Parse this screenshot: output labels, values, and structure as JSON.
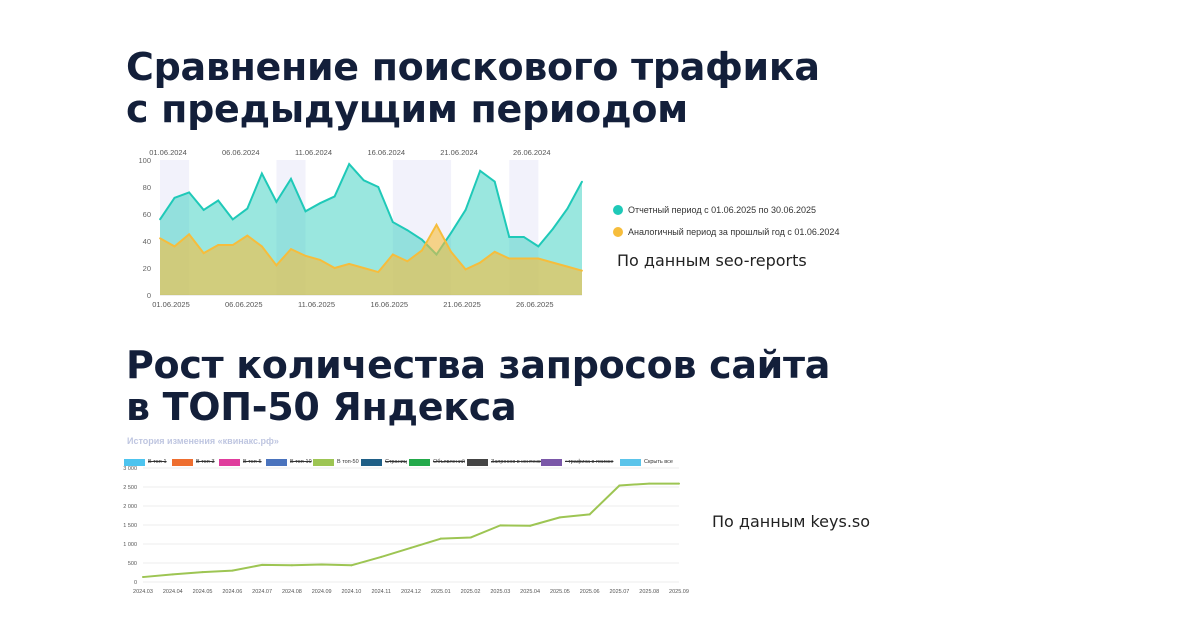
{
  "titles": {
    "traffic": [
      "Сравнение поискового трафика",
      "с предыдущим периодом"
    ],
    "queries": [
      "Рост количества запросов сайта",
      "в ТОП-50 Яндекса"
    ]
  },
  "sources": {
    "traffic": "По данным seo-reports",
    "queries": "По данным keys.so"
  },
  "chart_data": [
    {
      "type": "area",
      "x_top_labels": [
        "01.06.2024",
        "06.06.2024",
        "11.06.2024",
        "16.06.2024",
        "21.06.2024",
        "26.06.2024"
      ],
      "x_bottom_labels": [
        "01.06.2025",
        "06.06.2025",
        "11.06.2025",
        "16.06.2025",
        "21.06.2025",
        "26.06.2025"
      ],
      "y_ticks": [
        0,
        20,
        40,
        60,
        80,
        100
      ],
      "ylim": [
        0,
        100
      ],
      "grid": false,
      "legend_position": "right",
      "series": [
        {
          "name": "Отчетный период с 01.06.2025 по 30.06.2025",
          "color": "#1fc9b8",
          "values": [
            56,
            72,
            76,
            63,
            70,
            56,
            64,
            90,
            69,
            86,
            62,
            68,
            73,
            97,
            85,
            80,
            54,
            48,
            41,
            30,
            46,
            63,
            92,
            84,
            43,
            43,
            36,
            49,
            64,
            84
          ]
        },
        {
          "name": "Аналогичный период за прошлый год с 01.06.2024",
          "color": "#f6bd3c",
          "values": [
            42,
            36,
            45,
            31,
            37,
            37,
            44,
            36,
            22,
            34,
            29,
            26,
            20,
            23,
            20,
            17,
            30,
            25,
            33,
            52,
            32,
            19,
            24,
            32,
            27,
            27,
            27,
            24,
            21,
            18
          ]
        }
      ]
    },
    {
      "type": "line",
      "heading": "История изменения «квинакс.рф»",
      "categories": [
        "2024.03",
        "2024.04",
        "2024.05",
        "2024.06",
        "2024.07",
        "2024.08",
        "2024.09",
        "2024.10",
        "2024.11",
        "2024.12",
        "2025.01",
        "2025.02",
        "2025.03",
        "2025.04",
        "2025.05",
        "2025.06",
        "2025.07",
        "2025.08",
        "2025.09"
      ],
      "y_ticks": [
        "0",
        "500",
        "1 000",
        "1 500",
        "2 000",
        "2 500",
        "3 000"
      ],
      "ylim": [
        0,
        3000
      ],
      "grid": true,
      "legend_position": "top",
      "legend": [
        {
          "label": "В топ-1",
          "color": "#4dc4ef",
          "active": false
        },
        {
          "label": "В топ-3",
          "color": "#ee6e2f",
          "active": false
        },
        {
          "label": "В топ-5",
          "color": "#e03d9d",
          "active": false
        },
        {
          "label": "В топ-10",
          "color": "#4a73bd",
          "active": false
        },
        {
          "label": "В топ-50",
          "color": "#9dc553",
          "active": true
        },
        {
          "label": "Страниц",
          "color": "#1f5f86",
          "active": false
        },
        {
          "label": "Объявлений",
          "color": "#23a94a",
          "active": false
        },
        {
          "label": "Запросов в контексте",
          "color": "#444444",
          "active": false
        },
        {
          "label": "~трафика в поиске",
          "color": "#7a57a8",
          "active": false
        },
        {
          "label": "Скрыть все",
          "color": "#5bc4ea",
          "active": true
        }
      ],
      "series": [
        {
          "name": "В топ-50",
          "color": "#9dc553",
          "values": [
            130,
            200,
            260,
            300,
            450,
            440,
            460,
            440,
            660,
            900,
            1140,
            1170,
            1490,
            1480,
            1700,
            1780,
            2540,
            2590,
            2590
          ]
        }
      ]
    }
  ]
}
